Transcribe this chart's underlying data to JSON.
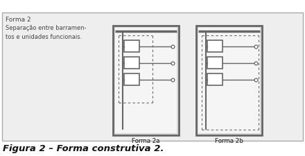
{
  "bg_color": "#f0f0f0",
  "outer_bg": "#eeeeee",
  "border_color": "#777777",
  "text_color": "#444444",
  "title_text": "Forma 2",
  "desc_text": "Separação entre barramen-\ntos e unidades funcionais.",
  "label_2a": "Forma 2a",
  "label_2b": "Forma 2b",
  "caption": "Figura 2 – Forma construtiva 2.",
  "box_fill": "#ffffff",
  "dashed_color": "#666666",
  "line_color": "#666666",
  "panel_edge": "#666666",
  "caption_fontsize": 9.5,
  "fig_bg": "#ffffff",
  "outer_edge": "#aaaaaa",
  "panel_fill": "#e8e8e8"
}
